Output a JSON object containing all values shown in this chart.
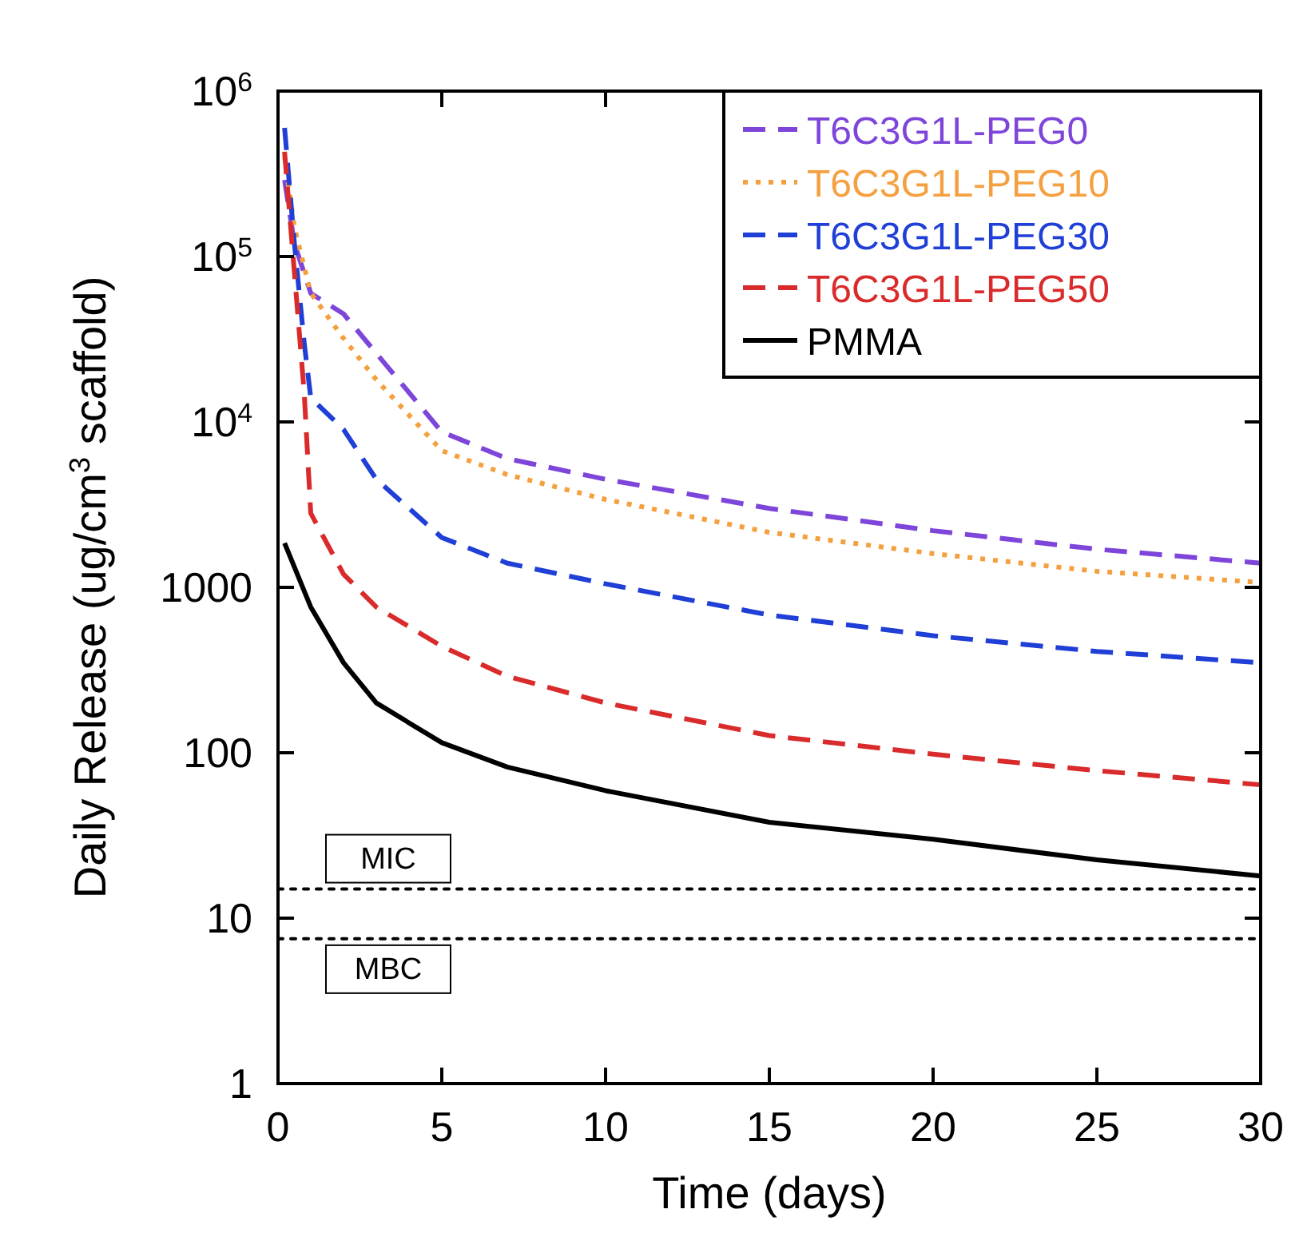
{
  "chart_data": {
    "type": "line",
    "xlabel": "Time (days)",
    "ylabel": "Daily Release (ug/cm$^{3}$ scaffold)",
    "log": "y",
    "xlim": [
      0,
      30
    ],
    "ylim": [
      1,
      1000000
    ],
    "xticks": [
      0,
      5,
      10,
      15,
      20,
      25,
      30
    ],
    "yticks": [
      1,
      10,
      100,
      1000,
      {
        "value": 10000,
        "label": "10$^{4}$"
      },
      {
        "value": 100000,
        "label": "10$^{5}$"
      },
      {
        "value": 1000000,
        "label": "10$^{6}$"
      }
    ],
    "grid": false,
    "legend": "top right",
    "series": [
      {
        "name": "T6C3G1L-PEG0",
        "color": "#7d45d9",
        "line_style": "dashed",
        "x": [
          0.2,
          0.5,
          1,
          2,
          3,
          5,
          7,
          10,
          15,
          20,
          25,
          30
        ],
        "values": [
          290000,
          120000,
          60000,
          45000,
          26000,
          8700,
          6000,
          4500,
          3000,
          2200,
          1700,
          1400
        ]
      },
      {
        "name": "T6C3G1L-PEG10",
        "color": "#f5a040",
        "line_style": "dotted",
        "x": [
          0.2,
          0.5,
          1,
          2,
          3,
          5,
          7,
          10,
          15,
          20,
          25,
          30
        ],
        "values": [
          400000,
          150000,
          60000,
          32000,
          18000,
          6700,
          4800,
          3400,
          2150,
          1600,
          1250,
          1070
        ]
      },
      {
        "name": "T6C3G1L-PEG30",
        "color": "#1f3fd6",
        "line_style": "dashed",
        "x": [
          0.2,
          0.5,
          0.8,
          1,
          2,
          3,
          5,
          7,
          10,
          15,
          20,
          25,
          30
        ],
        "values": [
          600000,
          120000,
          30000,
          14000,
          9000,
          4500,
          2000,
          1400,
          1050,
          680,
          510,
          410,
          350
        ]
      },
      {
        "name": "T6C3G1L-PEG50",
        "color": "#d92b2b",
        "line_style": "dashed",
        "x": [
          0.2,
          0.5,
          0.8,
          1,
          2,
          3,
          5,
          7,
          10,
          15,
          20,
          25,
          30
        ],
        "values": [
          430000,
          80000,
          15000,
          2800,
          1200,
          760,
          440,
          290,
          200,
          127,
          98,
          78,
          64
        ]
      },
      {
        "name": "PMMA",
        "color": "#000000",
        "line_style": "solid",
        "x": [
          0.2,
          1,
          2,
          3,
          5,
          7,
          10,
          15,
          20,
          25,
          30
        ],
        "values": [
          1850,
          760,
          350,
          200,
          115,
          82,
          59,
          38,
          30,
          22.5,
          18
        ]
      }
    ],
    "ref_lines": [
      {
        "axis": "y",
        "value": 15,
        "label": "MIC",
        "line_style": "dotted",
        "color": "#000000"
      },
      {
        "axis": "y",
        "value": 7.5,
        "label": "MBC",
        "line_style": "dotted",
        "color": "#000000"
      }
    ]
  }
}
